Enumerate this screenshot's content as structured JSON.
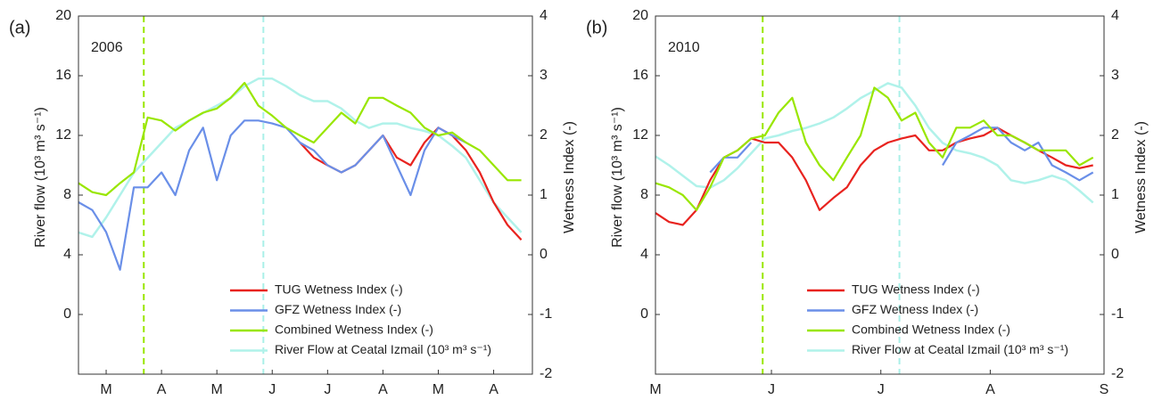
{
  "chart_data": [
    {
      "type": "line",
      "panel_label": "(a)",
      "annotation": "2006",
      "y_label": "River flow (10³ m³ s⁻¹)",
      "y2_label": "Wetness Index (-)",
      "x": [
        0,
        0.25,
        0.5,
        0.75,
        1,
        1.25,
        1.5,
        1.75,
        2,
        2.25,
        2.5,
        2.75,
        3,
        3.25,
        3.5,
        3.75,
        4,
        4.25,
        4.5,
        4.75,
        5,
        5.25,
        5.5,
        5.75,
        6,
        6.25,
        6.5,
        6.75,
        7,
        7.25,
        7.5,
        7.75,
        8
      ],
      "xlim": [
        0,
        8.2
      ],
      "xticks": [
        {
          "value": 0.5,
          "label": "M"
        },
        {
          "value": 1.5,
          "label": "A"
        },
        {
          "value": 2.5,
          "label": "M"
        },
        {
          "value": 3.5,
          "label": "J"
        },
        {
          "value": 4.5,
          "label": "J"
        },
        {
          "value": 5.5,
          "label": "A"
        },
        {
          "value": 6.5,
          "label": "M"
        },
        {
          "value": 7.5,
          "label": "A"
        }
      ],
      "ylim": [
        -4,
        20
      ],
      "yticks": [
        0,
        4,
        8,
        12,
        16,
        20
      ],
      "y2lim": [
        -2,
        4
      ],
      "y2ticks": [
        -2,
        -1,
        0,
        1,
        2,
        3,
        4
      ],
      "vlines": [
        {
          "x": 1.18,
          "color": "#99e600"
        },
        {
          "x": 3.34,
          "color": "#aaf0e8"
        }
      ],
      "series": [
        {
          "name": "TUG Wetness Index (-)",
          "color": "#e8231f",
          "axis": "y2",
          "values": [
            null,
            null,
            null,
            null,
            null,
            null,
            null,
            null,
            null,
            null,
            null,
            null,
            null,
            null,
            null,
            null,
            1.88,
            1.63,
            1.5,
            1.38,
            1.5,
            1.75,
            2.0,
            1.63,
            1.5,
            1.88,
            2.13,
            2.0,
            1.75,
            1.38,
            0.88,
            0.5,
            0.25
          ]
        },
        {
          "name": "GFZ Wetness Index (-)",
          "color": "#6a8fe8",
          "axis": "y2",
          "values": [
            0.88,
            0.75,
            0.38,
            -0.25,
            1.13,
            1.13,
            1.38,
            1.0,
            1.75,
            2.13,
            1.25,
            2.0,
            2.25,
            2.25,
            2.2,
            2.13,
            1.88,
            1.75,
            1.5,
            1.38,
            1.5,
            1.75,
            2.0,
            1.5,
            1.0,
            1.75,
            2.13,
            2.0,
            1.88,
            null,
            null,
            null,
            null
          ]
        },
        {
          "name": "Combined Wetness Index (-)",
          "color": "#99e600",
          "axis": "y2",
          "values": [
            1.2,
            1.05,
            1.0,
            1.2,
            1.38,
            2.3,
            2.25,
            2.08,
            2.25,
            2.38,
            2.45,
            2.63,
            2.88,
            2.5,
            2.33,
            2.13,
            2.0,
            1.88,
            2.13,
            2.38,
            2.2,
            2.63,
            2.63,
            2.5,
            2.38,
            2.13,
            2.0,
            2.05,
            1.88,
            1.75,
            1.5,
            1.25,
            1.25
          ]
        },
        {
          "name": "River Flow at Ceatal Izmail (10³ m³ s⁻¹)",
          "color": "#b0f2ea",
          "values": [
            5.5,
            5.2,
            6.5,
            8.0,
            9.5,
            10.5,
            11.5,
            12.5,
            13.0,
            13.5,
            14.0,
            14.5,
            15.3,
            15.8,
            15.8,
            15.3,
            14.7,
            14.3,
            14.3,
            13.8,
            13.0,
            12.5,
            12.8,
            12.8,
            12.5,
            12.3,
            12.0,
            11.3,
            10.5,
            9.0,
            7.5,
            6.5,
            5.5
          ]
        }
      ]
    },
    {
      "type": "line",
      "panel_label": "(b)",
      "annotation": "2010",
      "y_label": "River flow (10³ m³ s⁻¹)",
      "y2_label": "Wetness Index (-)",
      "x": [
        0,
        0.125,
        0.25,
        0.375,
        0.5,
        0.625,
        0.75,
        0.875,
        1,
        1.125,
        1.25,
        1.375,
        1.5,
        1.625,
        1.75,
        1.875,
        2,
        2.125,
        2.25,
        2.375,
        2.5,
        2.625,
        2.75,
        2.875,
        3,
        3.125,
        3.25,
        3.375,
        3.5,
        3.625,
        3.75,
        3.875,
        4
      ],
      "xlim": [
        0,
        4.1
      ],
      "xticks": [
        {
          "value": 0,
          "label": "M"
        },
        {
          "value": 1.06,
          "label": "J"
        },
        {
          "value": 2.06,
          "label": "J"
        },
        {
          "value": 3.06,
          "label": "A"
        },
        {
          "value": 4.1,
          "label": "S"
        }
      ],
      "ylim": [
        -4,
        20
      ],
      "yticks": [
        0,
        4,
        8,
        12,
        16,
        20
      ],
      "y2lim": [
        -2,
        4
      ],
      "y2ticks": [
        -2,
        -1,
        0,
        1,
        2,
        3,
        4
      ],
      "vlines": [
        {
          "x": 0.98,
          "color": "#99e600"
        },
        {
          "x": 2.23,
          "color": "#aaf0e8"
        }
      ],
      "series": [
        {
          "name": "TUG Wetness Index (-)",
          "color": "#e8231f",
          "axis": "y2",
          "values": [
            0.7,
            0.55,
            0.5,
            0.75,
            1.25,
            1.63,
            1.75,
            1.95,
            1.88,
            1.88,
            1.63,
            1.25,
            0.75,
            0.95,
            1.13,
            1.5,
            1.75,
            1.88,
            1.95,
            2.0,
            1.75,
            1.75,
            1.88,
            1.95,
            2.0,
            2.13,
            2.0,
            1.88,
            1.75,
            1.63,
            1.5,
            1.45,
            1.5
          ]
        },
        {
          "name": "GFZ Wetness Index (-)",
          "color": "#6a8fe8",
          "axis": "y2",
          "values": [
            null,
            null,
            null,
            null,
            1.38,
            1.63,
            1.63,
            1.88,
            null,
            null,
            null,
            null,
            null,
            null,
            null,
            null,
            null,
            null,
            null,
            null,
            null,
            1.5,
            1.88,
            2.0,
            2.13,
            2.13,
            1.88,
            1.75,
            1.88,
            1.5,
            1.38,
            1.25,
            1.38
          ]
        },
        {
          "name": "Combined Wetness Index (-)",
          "color": "#99e600",
          "axis": "y2",
          "values": [
            1.2,
            1.13,
            1.0,
            0.75,
            1.13,
            1.63,
            1.75,
            1.95,
            2.0,
            2.38,
            2.63,
            1.88,
            1.5,
            1.25,
            1.63,
            2.0,
            2.8,
            2.63,
            2.25,
            2.38,
            1.88,
            1.63,
            2.13,
            2.13,
            2.25,
            2.0,
            2.0,
            1.88,
            1.75,
            1.75,
            1.75,
            1.5,
            1.63
          ]
        },
        {
          "name": "River Flow at Ceatal Izmail (10³ m³ s⁻¹)",
          "color": "#b0f2ea",
          "values": [
            10.6,
            10.0,
            9.3,
            8.6,
            8.5,
            9.0,
            9.8,
            10.8,
            11.8,
            12.0,
            12.3,
            12.5,
            12.8,
            13.2,
            13.8,
            14.5,
            15.0,
            15.5,
            15.2,
            14.0,
            12.5,
            11.5,
            11.0,
            10.8,
            10.5,
            10.0,
            9.0,
            8.8,
            9.0,
            9.3,
            9.0,
            8.3,
            7.5
          ]
        }
      ]
    }
  ]
}
